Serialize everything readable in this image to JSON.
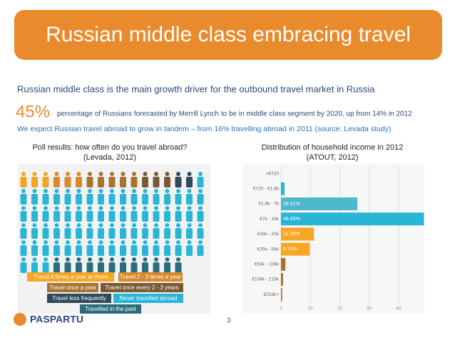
{
  "header": {
    "title": "Russian middle class embracing travel"
  },
  "intro": {
    "lead": "Russian middle class is the main growth driver for the outbound travel market in Russia",
    "stat": "45%",
    "stat_text": "percentage of Russians forecasted by Merrill Lynch to be in middle class segment by 2020, up from 14% in 2012",
    "note": "We expect Russian travel abroad to grow in tandem – from 16% travelling abroad in 2011 (source: Levada study)"
  },
  "chart_data": [
    {
      "type": "pictogram",
      "title": "Poll results: how often do you travel abroad?",
      "subtitle": "(Levada, 2012)",
      "categories": [
        "Travel 4 times a year or more",
        "Travel 2 - 3 times a year",
        "Travel once a year",
        "Travel once every 2 - 3 years",
        "Travel less frequently",
        "Never travelled abroad",
        "Travelled in the past"
      ],
      "values": [
        3,
        3,
        5,
        3,
        2,
        72,
        12
      ],
      "colors": [
        "#f5a623",
        "#d98a2b",
        "#a8732f",
        "#7a5a33",
        "#2f4a5a",
        "#29b6d6",
        "#2a6e7c"
      ]
    },
    {
      "type": "bar",
      "title": "Distribution of household income in 2012",
      "subtitle": "(ATOUT, 2012)",
      "categories": [
        "<€720",
        "€720 - €1.8k",
        "€1.8k - 7k",
        "€7k - 18k",
        "€18k - 25k",
        "€25k - 54k",
        "€54k - 108k",
        "€108k - 216k",
        "€216k+"
      ],
      "values": [
        0,
        1.2,
        26.01,
        48.66,
        11.2,
        9.76,
        1.5,
        0.7,
        0.4
      ],
      "value_labels": [
        null,
        null,
        "26.01%",
        "48.66%",
        "11.20%",
        "9.76%",
        null,
        null,
        null
      ],
      "colors": [
        "#29b6d6",
        "#29b6d6",
        "#4db8cc",
        "#29b6d6",
        "#f5a623",
        "#f5a623",
        "#a8732f",
        "#a8732f",
        "#a8732f"
      ],
      "xlim": [
        0,
        50
      ],
      "xticks": [
        0,
        10,
        20,
        30,
        40
      ],
      "grid": true
    }
  ],
  "footer": {
    "logo": "PASPARTU",
    "page": "3"
  }
}
